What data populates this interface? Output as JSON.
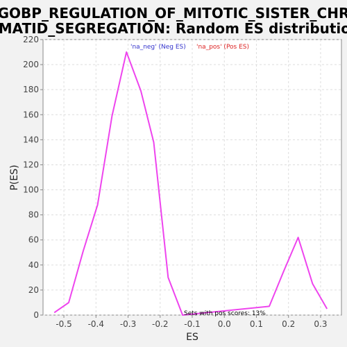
{
  "chart_data": {
    "type": "line",
    "title_lines": [
      "GOBP_REGULATION_OF_MITOTIC_SISTER_CHR",
      "OMATID_SEGREGATION: Random ES distribution"
    ],
    "xlabel": "ES",
    "ylabel": "P(ES)",
    "xlim": [
      -0.565,
      0.365
    ],
    "ylim": [
      0,
      220
    ],
    "x_ticks": [
      -0.5,
      -0.4,
      -0.3,
      -0.2,
      -0.1,
      0.0,
      0.1,
      0.2,
      0.3
    ],
    "x_tick_labels": [
      "-0.5",
      "-0.4",
      "-0.3",
      "-0.2",
      "-0.1",
      "0.0",
      "0.1",
      "0.2",
      "0.3"
    ],
    "y_ticks": [
      0,
      20,
      40,
      60,
      80,
      100,
      120,
      140,
      160,
      180,
      200,
      220
    ],
    "y_tick_labels": [
      "0",
      "20",
      "40",
      "60",
      "80",
      "100",
      "120",
      "140",
      "160",
      "180",
      "200",
      "220"
    ],
    "grid": true,
    "legend_position": "top",
    "legend": [
      {
        "label": "'na_neg' (Neg ES)",
        "color": "#3333cc"
      },
      {
        "label": "'na_pos' (Pos ES)",
        "color": "#dd2222"
      }
    ],
    "annotation": "Sets with pos scores: 13%",
    "series": [
      {
        "color": "#ee44ee",
        "x": [
          -0.53,
          -0.485,
          -0.44,
          -0.395,
          -0.35,
          -0.305,
          -0.26,
          -0.22,
          -0.175,
          -0.13,
          0.14,
          0.185,
          0.23,
          0.275,
          0.32
        ],
        "y": [
          2,
          10,
          51,
          88,
          159,
          210,
          179,
          138,
          30,
          0,
          7,
          35,
          62,
          25,
          5
        ]
      }
    ]
  }
}
